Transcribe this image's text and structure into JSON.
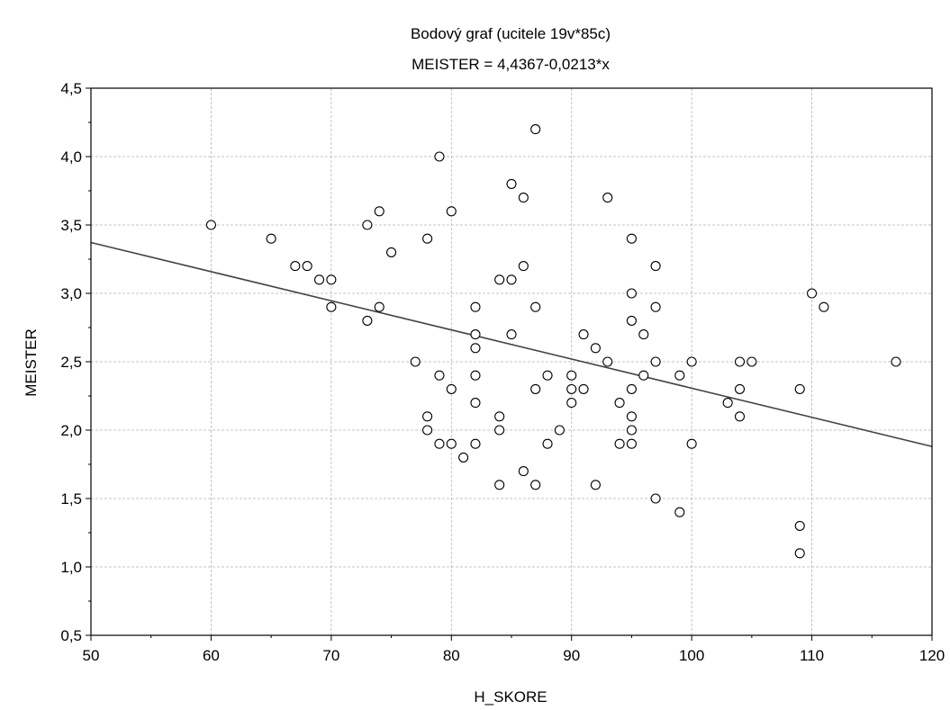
{
  "chart_data": {
    "type": "scatter",
    "title": "Bodový graf (ucitele 19v*85c)",
    "subtitle": "MEISTER = 4,4367-0,0213*x",
    "xlabel": "H_SKORE",
    "ylabel": "MEISTER",
    "xlim": [
      50,
      120
    ],
    "ylim": [
      0.5,
      4.5
    ],
    "x_ticks": [
      50,
      60,
      70,
      80,
      90,
      100,
      110,
      120
    ],
    "x_tick_labels": [
      "50",
      "60",
      "70",
      "80",
      "90",
      "100",
      "110",
      "120"
    ],
    "y_ticks": [
      0.5,
      1.0,
      1.5,
      2.0,
      2.5,
      3.0,
      3.5,
      4.0,
      4.5
    ],
    "y_tick_labels": [
      "0,5",
      "1,0",
      "1,5",
      "2,0",
      "2,5",
      "3,0",
      "3,5",
      "4,0",
      "4,5"
    ],
    "grid": true,
    "regression": {
      "intercept": 4.4367,
      "slope": -0.0213
    },
    "points": [
      [
        60,
        3.5
      ],
      [
        65,
        3.4
      ],
      [
        67,
        3.2
      ],
      [
        68,
        3.2
      ],
      [
        69,
        3.1
      ],
      [
        70,
        3.1
      ],
      [
        70,
        2.9
      ],
      [
        73,
        3.5
      ],
      [
        73,
        2.8
      ],
      [
        74,
        3.6
      ],
      [
        74,
        2.9
      ],
      [
        75,
        3.3
      ],
      [
        77,
        2.5
      ],
      [
        78,
        3.4
      ],
      [
        78,
        2.1
      ],
      [
        78,
        2.0
      ],
      [
        79,
        4.0
      ],
      [
        79,
        2.4
      ],
      [
        79,
        1.9
      ],
      [
        80,
        3.6
      ],
      [
        80,
        2.3
      ],
      [
        80,
        1.9
      ],
      [
        81,
        1.8
      ],
      [
        82,
        2.9
      ],
      [
        82,
        2.7
      ],
      [
        82,
        2.6
      ],
      [
        82,
        2.4
      ],
      [
        82,
        2.2
      ],
      [
        82,
        1.9
      ],
      [
        84,
        3.1
      ],
      [
        84,
        2.1
      ],
      [
        84,
        2.0
      ],
      [
        84,
        1.6
      ],
      [
        85,
        3.8
      ],
      [
        85,
        3.1
      ],
      [
        85,
        2.7
      ],
      [
        86,
        3.7
      ],
      [
        86,
        3.2
      ],
      [
        86,
        1.7
      ],
      [
        87,
        4.2
      ],
      [
        87,
        2.9
      ],
      [
        87,
        2.3
      ],
      [
        87,
        1.6
      ],
      [
        88,
        2.4
      ],
      [
        88,
        1.9
      ],
      [
        89,
        2.0
      ],
      [
        90,
        2.4
      ],
      [
        90,
        2.3
      ],
      [
        90,
        2.2
      ],
      [
        91,
        2.7
      ],
      [
        91,
        2.3
      ],
      [
        92,
        2.6
      ],
      [
        92,
        1.6
      ],
      [
        93,
        3.7
      ],
      [
        93,
        2.5
      ],
      [
        94,
        2.2
      ],
      [
        94,
        1.9
      ],
      [
        95,
        3.4
      ],
      [
        95,
        3.0
      ],
      [
        95,
        2.8
      ],
      [
        95,
        2.3
      ],
      [
        95,
        2.1
      ],
      [
        95,
        2.0
      ],
      [
        95,
        1.9
      ],
      [
        96,
        2.7
      ],
      [
        96,
        2.4
      ],
      [
        97,
        3.2
      ],
      [
        97,
        2.9
      ],
      [
        97,
        2.5
      ],
      [
        97,
        1.5
      ],
      [
        99,
        2.4
      ],
      [
        99,
        1.4
      ],
      [
        100,
        2.5
      ],
      [
        100,
        1.9
      ],
      [
        103,
        2.2
      ],
      [
        104,
        2.5
      ],
      [
        104,
        2.3
      ],
      [
        104,
        2.1
      ],
      [
        105,
        2.5
      ],
      [
        109,
        2.3
      ],
      [
        109,
        1.3
      ],
      [
        109,
        1.1
      ],
      [
        110,
        3.0
      ],
      [
        111,
        2.9
      ],
      [
        117,
        2.5
      ]
    ]
  }
}
